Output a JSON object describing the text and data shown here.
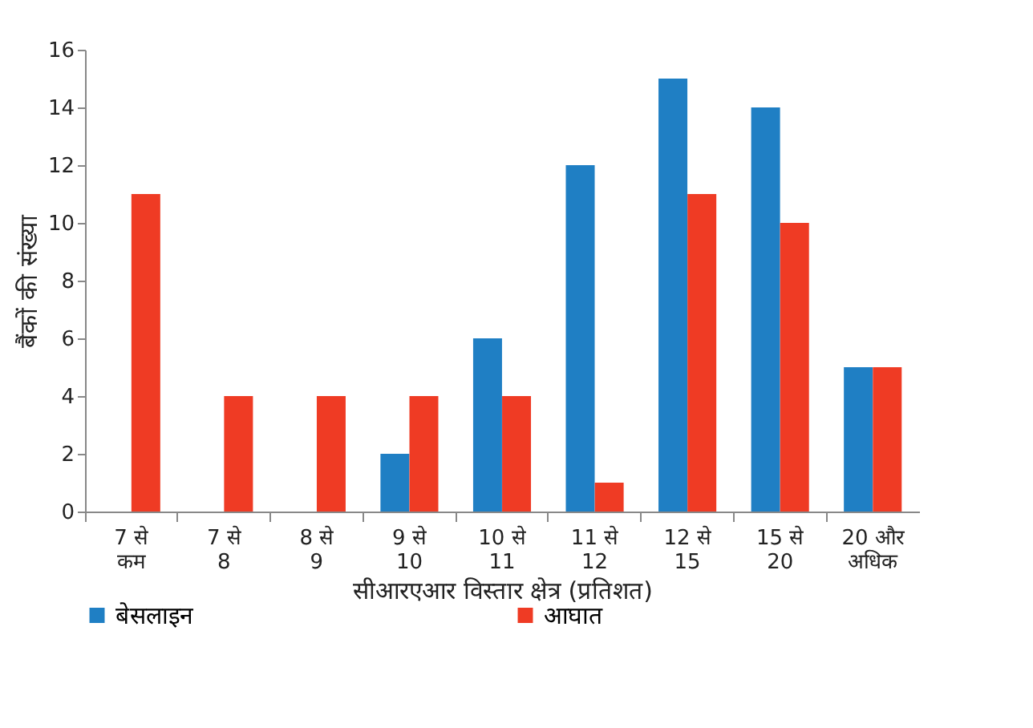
{
  "chart_data": {
    "type": "bar",
    "xlabel": "सीआरएआर विस्तार क्षेत्र (प्रतिशत)",
    "ylabel": "बैंकों की संख्या",
    "categories": [
      "7 से कम",
      "7 से 8",
      "8 से 9",
      "9 से 10",
      "10 से 11",
      "11 से 12",
      "12 से 15",
      "15 से 20",
      "20 और अधिक"
    ],
    "series": [
      {
        "name": "बेसलाइन",
        "color": "#1f7fc4",
        "values": [
          0,
          0,
          0,
          2,
          6,
          12,
          15,
          14,
          5
        ]
      },
      {
        "name": "आघात",
        "color": "#ef3b24",
        "values": [
          11,
          4,
          4,
          4,
          4,
          1,
          11,
          10,
          5
        ]
      }
    ],
    "ylim": [
      0,
      16
    ],
    "yticks": [
      0,
      2,
      4,
      6,
      8,
      10,
      12,
      14,
      16
    ],
    "grid": false,
    "legend": "bottom"
  }
}
